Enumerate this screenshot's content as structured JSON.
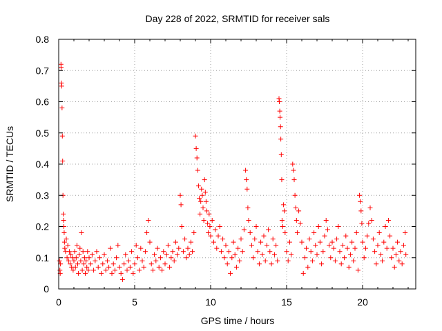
{
  "chart_data": {
    "type": "scatter",
    "title": "Day 228 of 2022, SRMTID for receiver sals",
    "xlabel": "GPS time / hours",
    "ylabel": "SRMTID / TECUs",
    "xlim": [
      0,
      23.5
    ],
    "ylim": [
      0,
      0.8
    ],
    "xticks": [
      "0",
      "5",
      "10",
      "15",
      "20"
    ],
    "yticks": [
      "0",
      "0.1",
      "0.2",
      "0.3",
      "0.4",
      "0.5",
      "0.6",
      "0.7",
      "0.8"
    ],
    "grid": true,
    "marker": "+",
    "series_color": "#ff0000",
    "points": [
      [
        0.05,
        0.09
      ],
      [
        0.08,
        0.06
      ],
      [
        0.1,
        0.05
      ],
      [
        0.12,
        0.08
      ],
      [
        0.15,
        0.72
      ],
      [
        0.16,
        0.71
      ],
      [
        0.18,
        0.66
      ],
      [
        0.2,
        0.65
      ],
      [
        0.22,
        0.58
      ],
      [
        0.24,
        0.49
      ],
      [
        0.26,
        0.41
      ],
      [
        0.28,
        0.3
      ],
      [
        0.3,
        0.24
      ],
      [
        0.32,
        0.22
      ],
      [
        0.34,
        0.2
      ],
      [
        0.36,
        0.18
      ],
      [
        0.38,
        0.15
      ],
      [
        0.4,
        0.13
      ],
      [
        0.45,
        0.12
      ],
      [
        0.5,
        0.16
      ],
      [
        0.55,
        0.1
      ],
      [
        0.6,
        0.14
      ],
      [
        0.65,
        0.09
      ],
      [
        0.7,
        0.12
      ],
      [
        0.75,
        0.08
      ],
      [
        0.8,
        0.11
      ],
      [
        0.85,
        0.07
      ],
      [
        0.9,
        0.1
      ],
      [
        0.95,
        0.06
      ],
      [
        1.0,
        0.09
      ],
      [
        1.05,
        0.12
      ],
      [
        1.1,
        0.07
      ],
      [
        1.15,
        0.1
      ],
      [
        1.2,
        0.14
      ],
      [
        1.25,
        0.08
      ],
      [
        1.3,
        0.05
      ],
      [
        1.35,
        0.11
      ],
      [
        1.4,
        0.13
      ],
      [
        1.45,
        0.09
      ],
      [
        1.5,
        0.18
      ],
      [
        1.55,
        0.06
      ],
      [
        1.6,
        0.12
      ],
      [
        1.65,
        0.08
      ],
      [
        1.7,
        0.1
      ],
      [
        1.75,
        0.05
      ],
      [
        1.8,
        0.09
      ],
      [
        1.85,
        0.07
      ],
      [
        1.9,
        0.12
      ],
      [
        1.95,
        0.06
      ],
      [
        2.0,
        0.1
      ],
      [
        2.1,
        0.08
      ],
      [
        2.2,
        0.11
      ],
      [
        2.3,
        0.06
      ],
      [
        2.4,
        0.09
      ],
      [
        2.5,
        0.12
      ],
      [
        2.6,
        0.07
      ],
      [
        2.7,
        0.1
      ],
      [
        2.8,
        0.05
      ],
      [
        2.9,
        0.08
      ],
      [
        3.0,
        0.11
      ],
      [
        3.1,
        0.06
      ],
      [
        3.2,
        0.09
      ],
      [
        3.3,
        0.07
      ],
      [
        3.4,
        0.13
      ],
      [
        3.5,
        0.05
      ],
      [
        3.6,
        0.08
      ],
      [
        3.7,
        0.06
      ],
      [
        3.8,
        0.1
      ],
      [
        3.9,
        0.14
      ],
      [
        4.0,
        0.07
      ],
      [
        4.1,
        0.05
      ],
      [
        4.2,
        0.03
      ],
      [
        4.3,
        0.08
      ],
      [
        4.4,
        0.11
      ],
      [
        4.5,
        0.06
      ],
      [
        4.6,
        0.09
      ],
      [
        4.7,
        0.07
      ],
      [
        4.8,
        0.12
      ],
      [
        4.9,
        0.05
      ],
      [
        5.0,
        0.08
      ],
      [
        5.1,
        0.14
      ],
      [
        5.2,
        0.1
      ],
      [
        5.3,
        0.06
      ],
      [
        5.4,
        0.13
      ],
      [
        5.5,
        0.09
      ],
      [
        5.6,
        0.07
      ],
      [
        5.7,
        0.12
      ],
      [
        5.8,
        0.18
      ],
      [
        5.9,
        0.22
      ],
      [
        6.0,
        0.15
      ],
      [
        6.1,
        0.08
      ],
      [
        6.2,
        0.06
      ],
      [
        6.3,
        0.11
      ],
      [
        6.4,
        0.09
      ],
      [
        6.5,
        0.13
      ],
      [
        6.6,
        0.07
      ],
      [
        6.7,
        0.1
      ],
      [
        6.8,
        0.06
      ],
      [
        6.9,
        0.12
      ],
      [
        7.0,
        0.08
      ],
      [
        7.1,
        0.11
      ],
      [
        7.2,
        0.14
      ],
      [
        7.3,
        0.07
      ],
      [
        7.4,
        0.1
      ],
      [
        7.5,
        0.12
      ],
      [
        7.6,
        0.09
      ],
      [
        7.7,
        0.15
      ],
      [
        7.8,
        0.11
      ],
      [
        7.9,
        0.13
      ],
      [
        8.0,
        0.3
      ],
      [
        8.05,
        0.27
      ],
      [
        8.1,
        0.2
      ],
      [
        8.2,
        0.12
      ],
      [
        8.3,
        0.16
      ],
      [
        8.4,
        0.1
      ],
      [
        8.5,
        0.13
      ],
      [
        8.6,
        0.11
      ],
      [
        8.7,
        0.15
      ],
      [
        8.8,
        0.12
      ],
      [
        8.9,
        0.18
      ],
      [
        9.0,
        0.49
      ],
      [
        9.05,
        0.45
      ],
      [
        9.1,
        0.42
      ],
      [
        9.15,
        0.38
      ],
      [
        9.2,
        0.33
      ],
      [
        9.25,
        0.29
      ],
      [
        9.3,
        0.24
      ],
      [
        9.35,
        0.28
      ],
      [
        9.4,
        0.32
      ],
      [
        9.45,
        0.3
      ],
      [
        9.5,
        0.26
      ],
      [
        9.55,
        0.22
      ],
      [
        9.6,
        0.35
      ],
      [
        9.65,
        0.31
      ],
      [
        9.7,
        0.28
      ],
      [
        9.75,
        0.25
      ],
      [
        9.8,
        0.21
      ],
      [
        9.85,
        0.18
      ],
      [
        9.9,
        0.24
      ],
      [
        9.95,
        0.2
      ],
      [
        10.0,
        0.17
      ],
      [
        10.1,
        0.22
      ],
      [
        10.2,
        0.15
      ],
      [
        10.3,
        0.19
      ],
      [
        10.4,
        0.13
      ],
      [
        10.5,
        0.17
      ],
      [
        10.6,
        0.2
      ],
      [
        10.7,
        0.12
      ],
      [
        10.8,
        0.16
      ],
      [
        10.9,
        0.1
      ],
      [
        11.0,
        0.14
      ],
      [
        11.1,
        0.08
      ],
      [
        11.2,
        0.12
      ],
      [
        11.3,
        0.05
      ],
      [
        11.4,
        0.1
      ],
      [
        11.5,
        0.15
      ],
      [
        11.6,
        0.11
      ],
      [
        11.7,
        0.07
      ],
      [
        11.8,
        0.13
      ],
      [
        11.9,
        0.09
      ],
      [
        12.0,
        0.16
      ],
      [
        12.1,
        0.12
      ],
      [
        12.2,
        0.19
      ],
      [
        12.3,
        0.38
      ],
      [
        12.35,
        0.35
      ],
      [
        12.4,
        0.32
      ],
      [
        12.45,
        0.26
      ],
      [
        12.5,
        0.22
      ],
      [
        12.6,
        0.18
      ],
      [
        12.7,
        0.14
      ],
      [
        12.8,
        0.1
      ],
      [
        12.9,
        0.16
      ],
      [
        13.0,
        0.2
      ],
      [
        13.1,
        0.12
      ],
      [
        13.2,
        0.08
      ],
      [
        13.3,
        0.15
      ],
      [
        13.4,
        0.11
      ],
      [
        13.5,
        0.17
      ],
      [
        13.6,
        0.09
      ],
      [
        13.7,
        0.14
      ],
      [
        13.8,
        0.19
      ],
      [
        13.9,
        0.12
      ],
      [
        14.0,
        0.08
      ],
      [
        14.1,
        0.16
      ],
      [
        14.2,
        0.11
      ],
      [
        14.3,
        0.14
      ],
      [
        14.4,
        0.09
      ],
      [
        14.5,
        0.61
      ],
      [
        14.52,
        0.6
      ],
      [
        14.55,
        0.57
      ],
      [
        14.57,
        0.55
      ],
      [
        14.6,
        0.52
      ],
      [
        14.62,
        0.48
      ],
      [
        14.65,
        0.43
      ],
      [
        14.68,
        0.35
      ],
      [
        14.7,
        0.22
      ],
      [
        14.75,
        0.2
      ],
      [
        14.8,
        0.27
      ],
      [
        14.85,
        0.25
      ],
      [
        14.9,
        0.18
      ],
      [
        15.0,
        0.12
      ],
      [
        15.1,
        0.09
      ],
      [
        15.2,
        0.15
      ],
      [
        15.3,
        0.11
      ],
      [
        15.4,
        0.4
      ],
      [
        15.45,
        0.38
      ],
      [
        15.5,
        0.35
      ],
      [
        15.55,
        0.3
      ],
      [
        15.6,
        0.26
      ],
      [
        15.65,
        0.22
      ],
      [
        15.7,
        0.18
      ],
      [
        15.8,
        0.25
      ],
      [
        15.9,
        0.21
      ],
      [
        16.0,
        0.15
      ],
      [
        16.1,
        0.05
      ],
      [
        16.2,
        0.1
      ],
      [
        16.3,
        0.13
      ],
      [
        16.4,
        0.07
      ],
      [
        16.5,
        0.16
      ],
      [
        16.6,
        0.12
      ],
      [
        16.7,
        0.09
      ],
      [
        16.8,
        0.18
      ],
      [
        16.9,
        0.14
      ],
      [
        17.0,
        0.11
      ],
      [
        17.1,
        0.2
      ],
      [
        17.2,
        0.15
      ],
      [
        17.3,
        0.08
      ],
      [
        17.4,
        0.12
      ],
      [
        17.5,
        0.17
      ],
      [
        17.6,
        0.22
      ],
      [
        17.7,
        0.19
      ],
      [
        17.8,
        0.14
      ],
      [
        17.9,
        0.1
      ],
      [
        18.0,
        0.15
      ],
      [
        18.1,
        0.13
      ],
      [
        18.2,
        0.09
      ],
      [
        18.3,
        0.16
      ],
      [
        18.4,
        0.2
      ],
      [
        18.5,
        0.12
      ],
      [
        18.6,
        0.08
      ],
      [
        18.7,
        0.14
      ],
      [
        18.8,
        0.1
      ],
      [
        18.9,
        0.17
      ],
      [
        19.0,
        0.13
      ],
      [
        19.1,
        0.07
      ],
      [
        19.2,
        0.11
      ],
      [
        19.3,
        0.15
      ],
      [
        19.4,
        0.09
      ],
      [
        19.5,
        0.13
      ],
      [
        19.6,
        0.18
      ],
      [
        19.7,
        0.06
      ],
      [
        19.8,
        0.3
      ],
      [
        19.85,
        0.28
      ],
      [
        19.9,
        0.25
      ],
      [
        19.95,
        0.21
      ],
      [
        20.0,
        0.15
      ],
      [
        20.1,
        0.1
      ],
      [
        20.2,
        0.13
      ],
      [
        20.3,
        0.17
      ],
      [
        20.4,
        0.21
      ],
      [
        20.5,
        0.26
      ],
      [
        20.6,
        0.22
      ],
      [
        20.7,
        0.16
      ],
      [
        20.8,
        0.12
      ],
      [
        20.9,
        0.08
      ],
      [
        21.0,
        0.14
      ],
      [
        21.1,
        0.18
      ],
      [
        21.2,
        0.11
      ],
      [
        21.3,
        0.09
      ],
      [
        21.4,
        0.15
      ],
      [
        21.5,
        0.2
      ],
      [
        21.6,
        0.13
      ],
      [
        21.7,
        0.22
      ],
      [
        21.8,
        0.17
      ],
      [
        21.9,
        0.1
      ],
      [
        22.0,
        0.13
      ],
      [
        22.1,
        0.07
      ],
      [
        22.2,
        0.11
      ],
      [
        22.3,
        0.15
      ],
      [
        22.4,
        0.09
      ],
      [
        22.5,
        0.12
      ],
      [
        22.6,
        0.08
      ],
      [
        22.7,
        0.14
      ],
      [
        22.8,
        0.18
      ],
      [
        22.85,
        0.11
      ]
    ]
  }
}
